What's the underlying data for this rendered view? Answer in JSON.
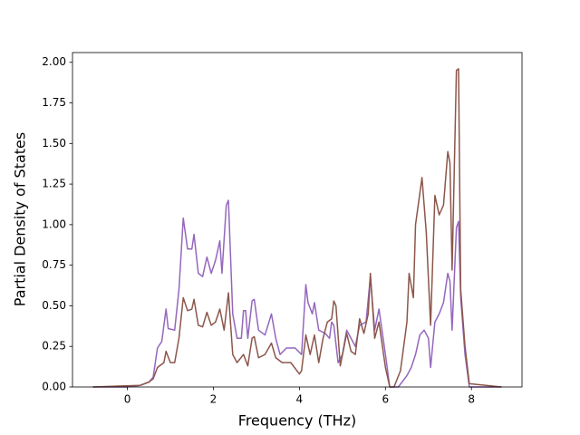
{
  "chart_data": {
    "type": "line",
    "xlabel": "Frequency (THz)",
    "ylabel": "Partial Density of States",
    "xlim": [
      -1.275,
      9.175
    ],
    "ylim": [
      0,
      2.06
    ],
    "xticks": [
      0,
      2,
      4,
      6,
      8
    ],
    "yticks": [
      {
        "value": 0,
        "label": "0.00"
      },
      {
        "value": 0.25,
        "label": "0.25"
      },
      {
        "value": 0.5,
        "label": "0.50"
      },
      {
        "value": 0.75,
        "label": "0.75"
      },
      {
        "value": 1,
        "label": "1.00"
      },
      {
        "value": 1.25,
        "label": "1.25"
      },
      {
        "value": 1.5,
        "label": "1.50"
      },
      {
        "value": 1.75,
        "label": "1.75"
      },
      {
        "value": 2,
        "label": "2.00"
      }
    ],
    "series": [
      {
        "color": "#9467bd",
        "x": [
          -0.8,
          0,
          0.3,
          0.5,
          0.6,
          0.7,
          0.8,
          0.9,
          0.95,
          1.1,
          1.2,
          1.3,
          1.4,
          1.5,
          1.55,
          1.65,
          1.75,
          1.85,
          1.95,
          2.05,
          2.15,
          2.2,
          2.3,
          2.35,
          2.45,
          2.55,
          2.65,
          2.7,
          2.75,
          2.8,
          2.9,
          2.95,
          3.05,
          3.2,
          3.35,
          3.45,
          3.55,
          3.7,
          3.9,
          4.05,
          4.15,
          4.2,
          4.3,
          4.35,
          4.45,
          4.6,
          4.7,
          4.75,
          4.8,
          4.9,
          5.0,
          5.1,
          5.2,
          5.3,
          5.4,
          5.55,
          5.65,
          5.75,
          5.85,
          6.0,
          6.1,
          6.3,
          6.5,
          6.6,
          6.7,
          6.8,
          6.9,
          7.0,
          7.05,
          7.15,
          7.25,
          7.35,
          7.45,
          7.5,
          7.55,
          7.65,
          7.7,
          7.75,
          7.85,
          7.95,
          8.7
        ],
        "values": [
          0,
          0,
          0.01,
          0.03,
          0.06,
          0.24,
          0.28,
          0.48,
          0.36,
          0.35,
          0.6,
          1.04,
          0.85,
          0.85,
          0.94,
          0.7,
          0.68,
          0.8,
          0.7,
          0.78,
          0.9,
          0.7,
          1.12,
          1.15,
          0.45,
          0.3,
          0.3,
          0.47,
          0.47,
          0.3,
          0.53,
          0.54,
          0.35,
          0.32,
          0.45,
          0.3,
          0.2,
          0.24,
          0.24,
          0.2,
          0.63,
          0.52,
          0.45,
          0.52,
          0.35,
          0.33,
          0.3,
          0.4,
          0.38,
          0.15,
          0.2,
          0.35,
          0.3,
          0.25,
          0.38,
          0.4,
          0.68,
          0.35,
          0.48,
          0.2,
          0,
          0,
          0.07,
          0.12,
          0.2,
          0.32,
          0.35,
          0.3,
          0.12,
          0.4,
          0.45,
          0.52,
          0.7,
          0.65,
          0.35,
          0.98,
          1.02,
          0.55,
          0.2,
          0,
          0
        ]
      },
      {
        "color": "#8c564b",
        "x": [
          -0.8,
          0.3,
          0.5,
          0.6,
          0.7,
          0.85,
          0.9,
          1.0,
          1.1,
          1.2,
          1.3,
          1.4,
          1.5,
          1.55,
          1.65,
          1.75,
          1.85,
          1.95,
          2.05,
          2.15,
          2.25,
          2.35,
          2.45,
          2.55,
          2.7,
          2.8,
          2.9,
          2.95,
          3.05,
          3.2,
          3.35,
          3.45,
          3.6,
          3.8,
          4.0,
          4.05,
          4.15,
          4.25,
          4.35,
          4.45,
          4.55,
          4.65,
          4.75,
          4.8,
          4.85,
          4.95,
          5.1,
          5.2,
          5.3,
          5.4,
          5.5,
          5.6,
          5.65,
          5.75,
          5.85,
          6.0,
          6.1,
          6.2,
          6.35,
          6.5,
          6.55,
          6.65,
          6.7,
          6.85,
          6.95,
          7.05,
          7.15,
          7.25,
          7.35,
          7.45,
          7.5,
          7.55,
          7.65,
          7.7,
          7.75,
          7.85,
          7.95,
          8.7
        ],
        "values": [
          0,
          0.01,
          0.03,
          0.05,
          0.12,
          0.15,
          0.22,
          0.15,
          0.15,
          0.3,
          0.55,
          0.47,
          0.48,
          0.54,
          0.38,
          0.37,
          0.46,
          0.38,
          0.4,
          0.48,
          0.35,
          0.58,
          0.2,
          0.15,
          0.2,
          0.13,
          0.3,
          0.31,
          0.18,
          0.2,
          0.27,
          0.18,
          0.15,
          0.15,
          0.08,
          0.1,
          0.32,
          0.2,
          0.32,
          0.15,
          0.3,
          0.4,
          0.42,
          0.53,
          0.5,
          0.13,
          0.33,
          0.22,
          0.2,
          0.42,
          0.33,
          0.45,
          0.7,
          0.3,
          0.4,
          0.12,
          0,
          0,
          0.1,
          0.4,
          0.7,
          0.55,
          1.0,
          1.29,
          0.95,
          0.38,
          1.18,
          1.06,
          1.12,
          1.45,
          1.38,
          0.72,
          1.95,
          1.96,
          0.6,
          0.25,
          0.02,
          0
        ]
      }
    ]
  }
}
